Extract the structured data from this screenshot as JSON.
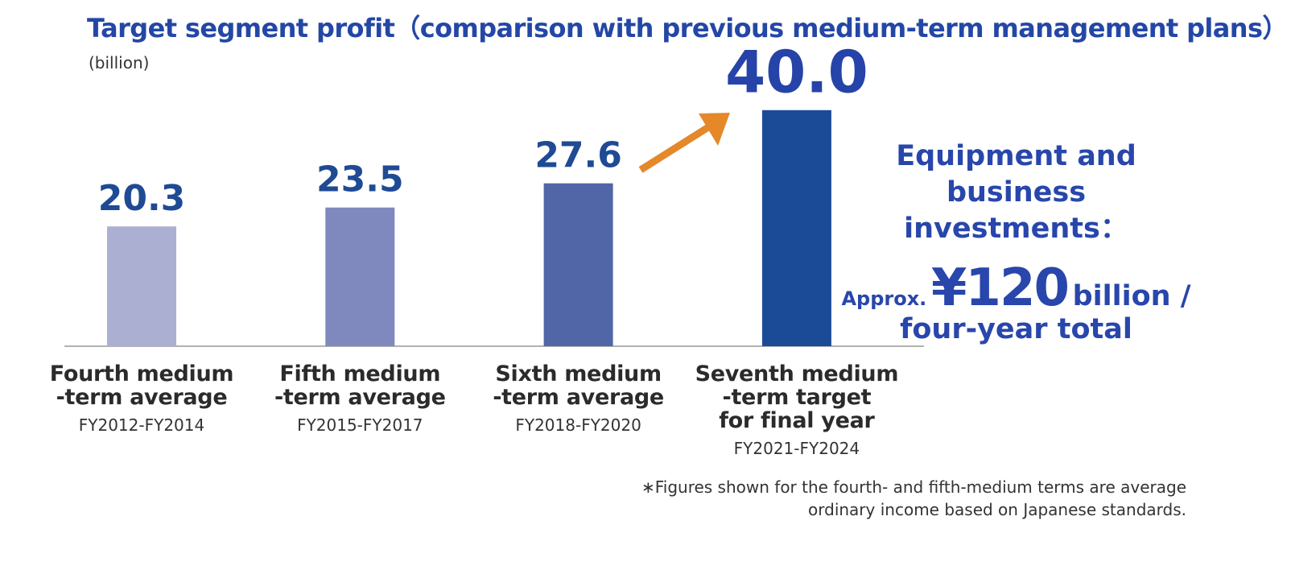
{
  "chart_data": {
    "type": "bar",
    "title": "Target segment profit（comparison with previous medium-term management plans）",
    "unit_label": "(billion)",
    "categories": [
      "Fourth medium\n-term average",
      "Fifth medium\n-term average",
      "Sixth medium\n-term average",
      "Seventh medium\n-term target\nfor final year"
    ],
    "periods": [
      "FY2012-FY2014",
      "FY2015-FY2017",
      "FY2018-FY2020",
      "FY2021-FY2024"
    ],
    "values": [
      20.3,
      23.5,
      27.6,
      40.0
    ],
    "value_labels": [
      "20.3",
      "23.5",
      "27.6",
      "40.0"
    ],
    "colors": [
      "#abb0d3",
      "#7f89bd",
      "#5166a7",
      "#1b4b97"
    ],
    "annotation": {
      "heading": "Equipment and\nbusiness investments：",
      "prefix": "Approx.",
      "amount": "¥120",
      "suffix": "billion /",
      "tail": "four-year total"
    },
    "footnote": "∗Figures shown for the fourth- and fifth-medium terms are average\nordinary income based on Japanese standards."
  }
}
